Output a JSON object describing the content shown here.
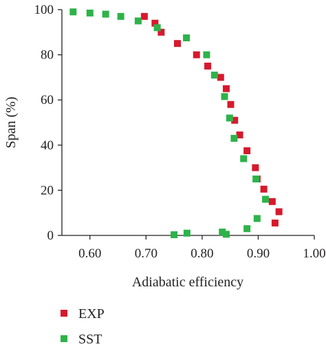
{
  "chart_data": {
    "type": "scatter",
    "title": "",
    "xlabel": "Adiabatic efficiency",
    "ylabel": "Span (%)",
    "xlim": [
      0.55,
      1.0
    ],
    "ylim": [
      0,
      100
    ],
    "xticks": [
      "0.60",
      "0.70",
      "0.80",
      "0.90",
      "1.00"
    ],
    "yticks": [
      "0",
      "20",
      "40",
      "60",
      "80",
      "100"
    ],
    "grid": false,
    "legend_position": "bottom-left",
    "series": [
      {
        "name": "EXP",
        "color": "#d7192d",
        "marker": "square",
        "points": [
          [
            0.697,
            97
          ],
          [
            0.716,
            94
          ],
          [
            0.727,
            90
          ],
          [
            0.756,
            85
          ],
          [
            0.79,
            80
          ],
          [
            0.81,
            75
          ],
          [
            0.833,
            70
          ],
          [
            0.843,
            65
          ],
          [
            0.851,
            58
          ],
          [
            0.858,
            51
          ],
          [
            0.867,
            44.5
          ],
          [
            0.88,
            37.5
          ],
          [
            0.895,
            30
          ],
          [
            0.898,
            25
          ],
          [
            0.91,
            20.5
          ],
          [
            0.925,
            15
          ],
          [
            0.937,
            10.5
          ],
          [
            0.93,
            5.5
          ]
        ]
      },
      {
        "name": "SST",
        "color": "#2db34a",
        "marker": "square",
        "points": [
          [
            0.57,
            99
          ],
          [
            0.6,
            98.5
          ],
          [
            0.628,
            98
          ],
          [
            0.655,
            97
          ],
          [
            0.686,
            95
          ],
          [
            0.72,
            92
          ],
          [
            0.772,
            87.5
          ],
          [
            0.808,
            80
          ],
          [
            0.822,
            71
          ],
          [
            0.84,
            61.5
          ],
          [
            0.849,
            52
          ],
          [
            0.857,
            43
          ],
          [
            0.874,
            34
          ],
          [
            0.896,
            25
          ],
          [
            0.913,
            16
          ],
          [
            0.898,
            7.5
          ],
          [
            0.88,
            3
          ],
          [
            0.843,
            0.5
          ],
          [
            0.836,
            1.5
          ],
          [
            0.773,
            1
          ],
          [
            0.75,
            0.3
          ]
        ]
      }
    ]
  }
}
